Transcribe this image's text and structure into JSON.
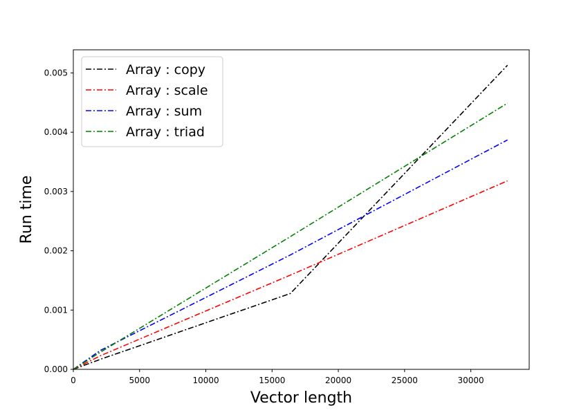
{
  "chart_data": {
    "type": "line",
    "title": "",
    "xlabel": "Vector length",
    "ylabel": "Run time",
    "xlim": [
      0,
      34406
    ],
    "ylim": [
      0,
      0.00539
    ],
    "x_ticks": [
      0,
      5000,
      10000,
      15000,
      20000,
      25000,
      30000
    ],
    "x_tick_labels": [
      "0",
      "5000",
      "10000",
      "15000",
      "20000",
      "25000",
      "30000"
    ],
    "y_ticks": [
      0,
      0.001,
      0.002,
      0.003,
      0.004,
      0.005
    ],
    "y_tick_labels": [
      "0.000",
      "0.001",
      "0.002",
      "0.003",
      "0.004",
      "0.005"
    ],
    "grid": false,
    "legend_position": "top-left",
    "line_style": "dash-dot",
    "series": [
      {
        "name": "Array : copy",
        "color": "#000000",
        "x": [
          0,
          2048,
          16384,
          32768
        ],
        "y": [
          0,
          0.00017,
          0.00128,
          0.00513
        ]
      },
      {
        "name": "Array : scale",
        "color": "#ff0000",
        "x": [
          0,
          2048,
          16384,
          32768
        ],
        "y": [
          0,
          0.00023,
          0.00159,
          0.00318
        ]
      },
      {
        "name": "Array : sum",
        "color": "#0000ff",
        "x": [
          0,
          2048,
          16384,
          32768
        ],
        "y": [
          0,
          0.00032,
          0.00193,
          0.00387
        ]
      },
      {
        "name": "Array : triad",
        "color": "#008000",
        "x": [
          0,
          2048,
          16384,
          32768
        ],
        "y": [
          0,
          0.00029,
          0.00224,
          0.00449
        ]
      }
    ]
  }
}
